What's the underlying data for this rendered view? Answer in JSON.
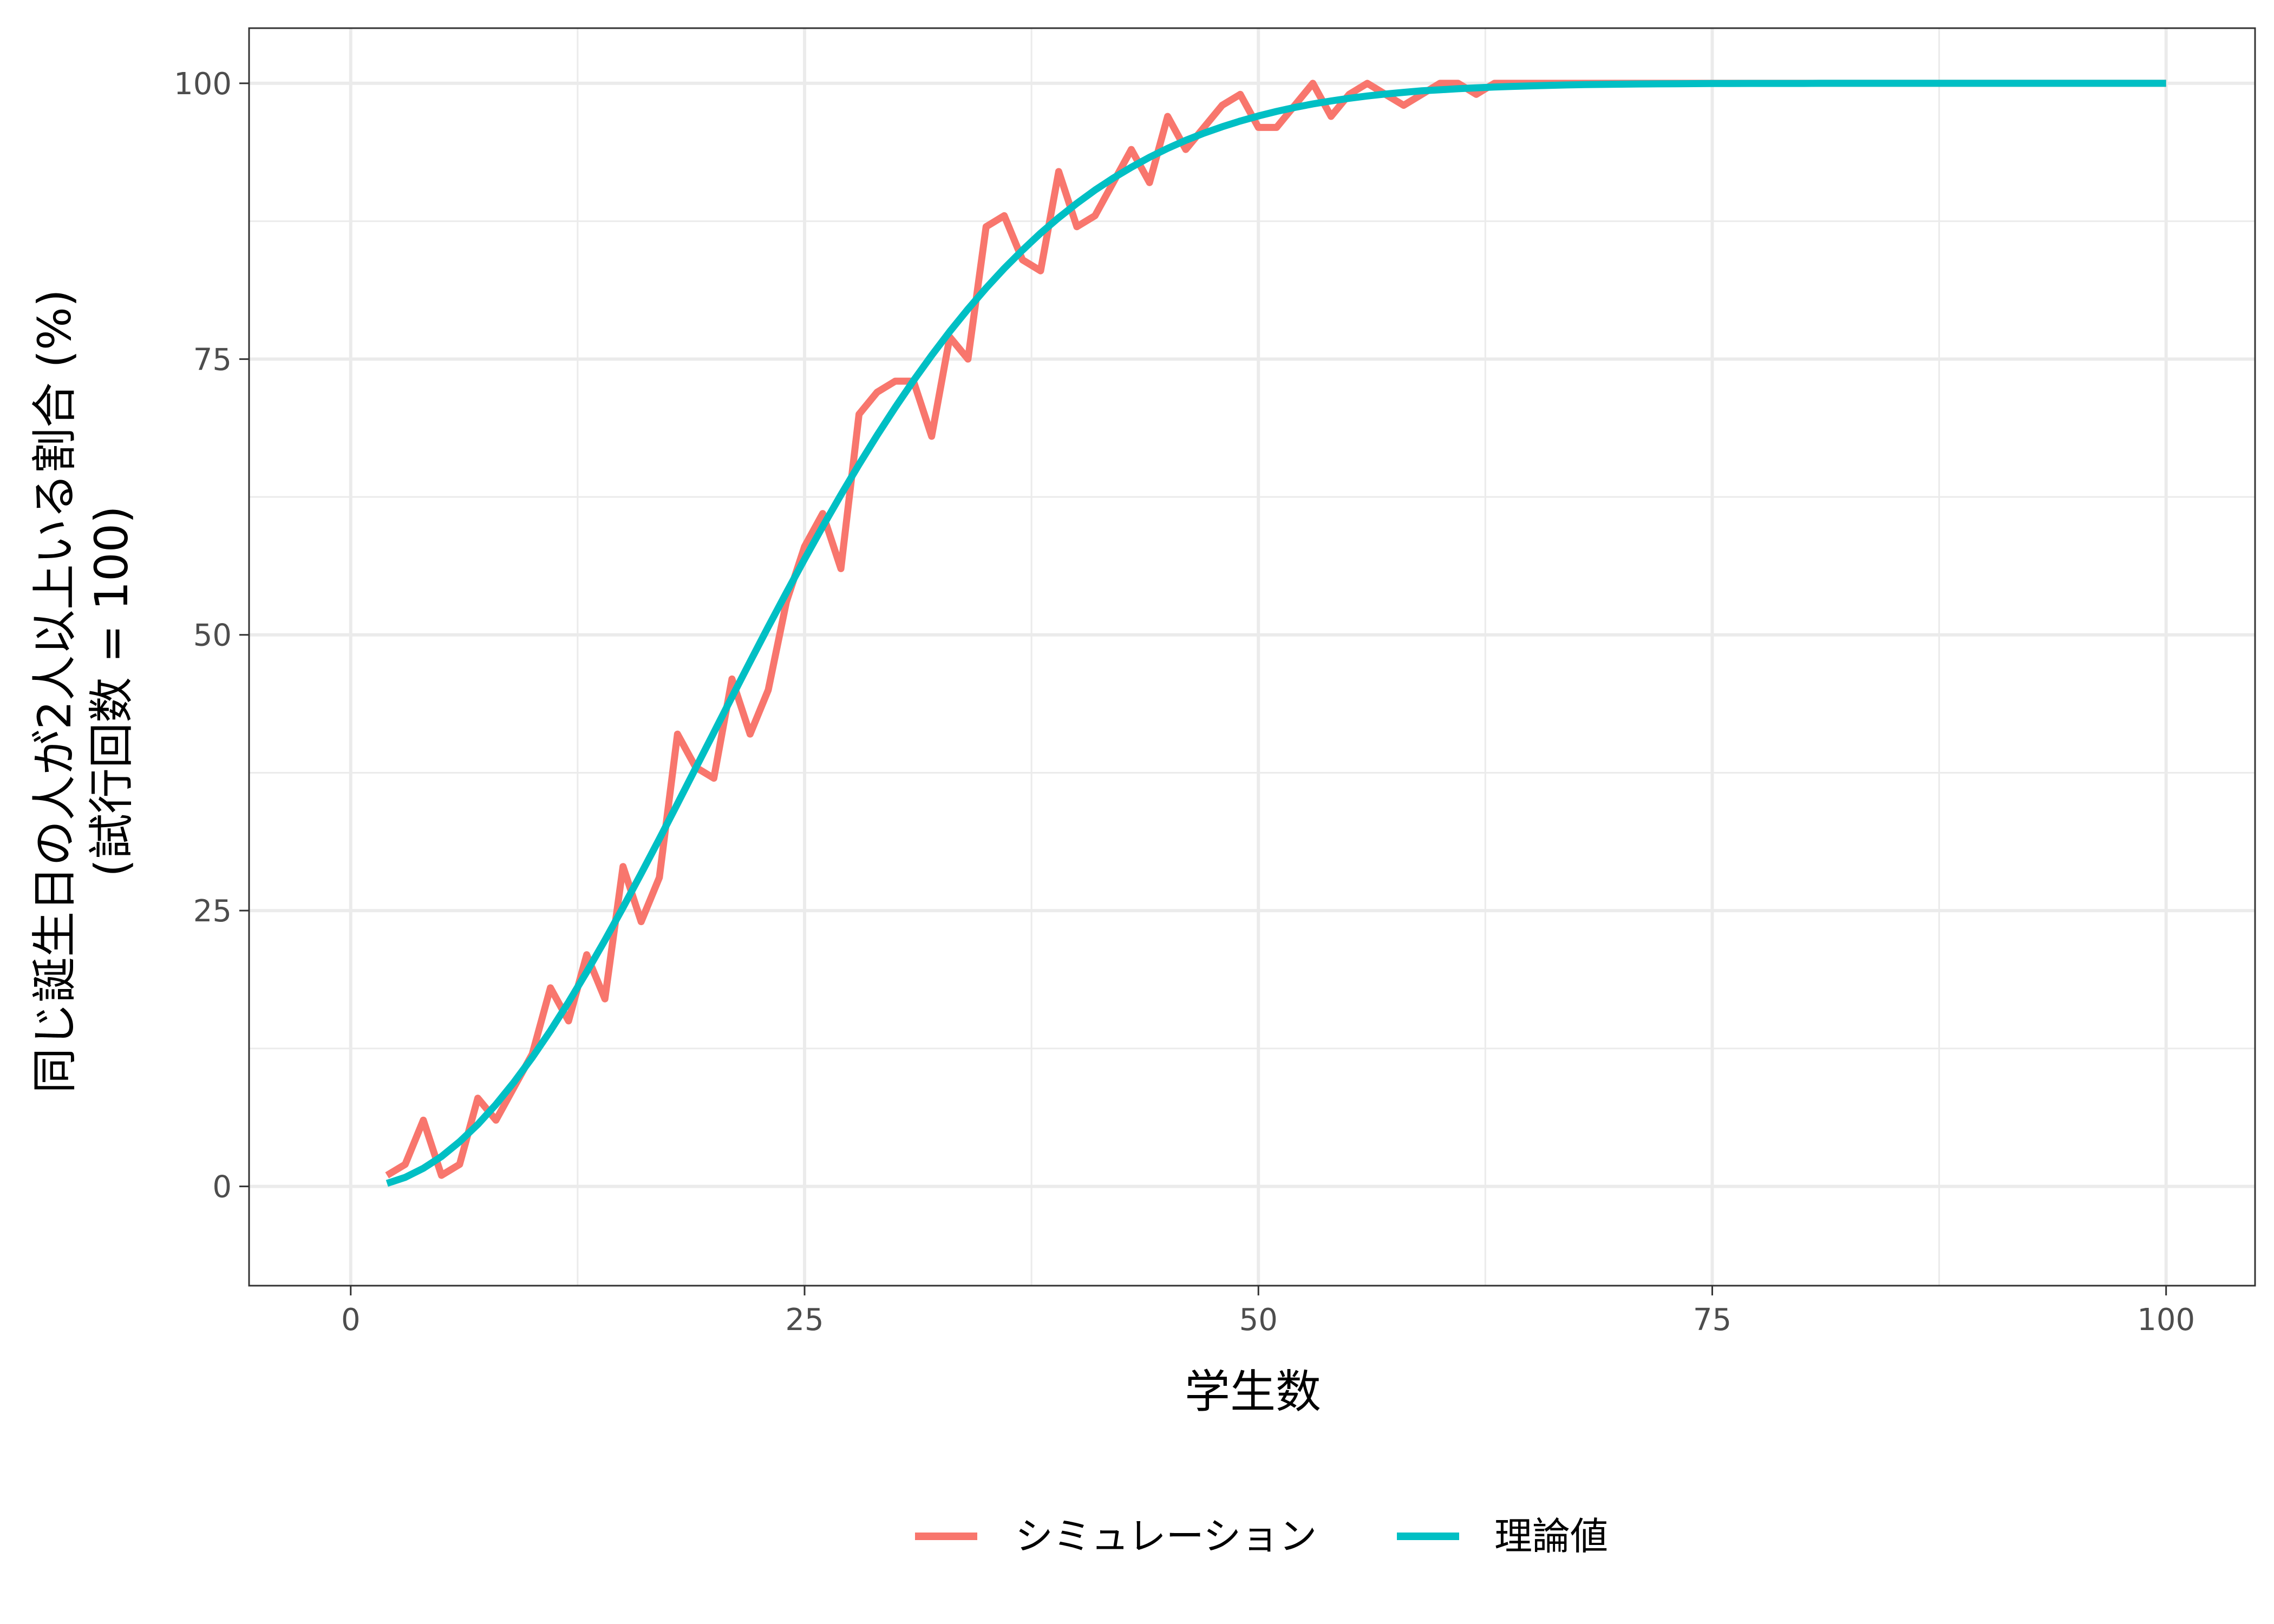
{
  "chart_data": {
    "type": "line",
    "xlabel": "学生数",
    "ylabel_lines": [
      "同じ誕生日の人が2人以上いる割合 (%)",
      "(試行回数 = 100)"
    ],
    "xlim": [
      -5.6,
      104.9
    ],
    "ylim": [
      -9,
      105
    ],
    "xticks": [
      0,
      25,
      50,
      75,
      100
    ],
    "yticks": [
      0,
      25,
      50,
      75,
      100
    ],
    "grid": true,
    "legend_position": "bottom",
    "series": [
      {
        "name": "シミュレーション",
        "color": "#f8766d",
        "x": [
          2,
          3,
          4,
          5,
          6,
          7,
          8,
          9,
          10,
          11,
          12,
          13,
          14,
          15,
          16,
          17,
          18,
          19,
          20,
          21,
          22,
          23,
          24,
          25,
          26,
          27,
          28,
          29,
          30,
          31,
          32,
          33,
          34,
          35,
          36,
          37,
          38,
          39,
          40,
          41,
          42,
          43,
          44,
          45,
          46,
          47,
          48,
          49,
          50,
          51,
          52,
          53,
          54,
          55,
          56,
          57,
          58,
          59,
          60,
          61,
          62,
          63,
          64,
          65,
          66,
          67,
          68,
          69,
          70,
          71,
          72,
          73,
          74,
          75,
          76,
          77,
          78,
          79,
          80,
          81,
          82,
          83,
          84,
          85,
          86,
          87,
          88,
          89,
          90,
          91,
          92,
          93,
          94,
          95,
          96,
          97,
          98,
          99,
          100
        ],
        "y": [
          1,
          2,
          6,
          1,
          2,
          8,
          6,
          9,
          12,
          18,
          15,
          21,
          17,
          29,
          24,
          28,
          41,
          38,
          37,
          46,
          41,
          45,
          53,
          58,
          61,
          56,
          70,
          72,
          73,
          73,
          68,
          77,
          75,
          87,
          88,
          84,
          83,
          92,
          87,
          88,
          91,
          94,
          91,
          97,
          94,
          96,
          98,
          99,
          96,
          96,
          98,
          100,
          97,
          99,
          100,
          99,
          98,
          99,
          100,
          100,
          99,
          100,
          100,
          100,
          100,
          100,
          100,
          100,
          100,
          100,
          100,
          100,
          100,
          100,
          100,
          100,
          100,
          100,
          100,
          100,
          100,
          100,
          100,
          100,
          100,
          100,
          100,
          100,
          100,
          100,
          100,
          100,
          100,
          100,
          100,
          100,
          100,
          100,
          100
        ]
      },
      {
        "name": "理論値",
        "color": "#00bfc4",
        "x": [
          2,
          3,
          4,
          5,
          6,
          7,
          8,
          9,
          10,
          11,
          12,
          13,
          14,
          15,
          16,
          17,
          18,
          19,
          20,
          21,
          22,
          23,
          24,
          25,
          26,
          27,
          28,
          29,
          30,
          31,
          32,
          33,
          34,
          35,
          36,
          37,
          38,
          39,
          40,
          41,
          42,
          43,
          44,
          45,
          46,
          47,
          48,
          49,
          50,
          51,
          52,
          53,
          54,
          55,
          56,
          57,
          58,
          59,
          60,
          61,
          62,
          63,
          64,
          65,
          66,
          67,
          68,
          69,
          70,
          71,
          72,
          73,
          74,
          75,
          76,
          77,
          78,
          79,
          80,
          81,
          82,
          83,
          84,
          85,
          86,
          87,
          88,
          89,
          90,
          91,
          92,
          93,
          94,
          95,
          96,
          97,
          98,
          99,
          100
        ],
        "y": [
          0.27,
          0.82,
          1.64,
          2.71,
          4.05,
          5.62,
          7.43,
          9.46,
          11.69,
          14.11,
          16.7,
          19.44,
          22.31,
          25.29,
          28.36,
          31.5,
          34.69,
          37.91,
          41.14,
          44.37,
          47.57,
          50.73,
          53.83,
          56.87,
          59.82,
          62.69,
          65.45,
          68.1,
          70.63,
          73.05,
          75.33,
          77.5,
          79.53,
          81.44,
          83.22,
          84.87,
          86.41,
          87.82,
          89.12,
          90.32,
          91.4,
          92.39,
          93.29,
          94.1,
          94.83,
          95.48,
          96.06,
          96.58,
          97.04,
          97.45,
          97.81,
          98.13,
          98.4,
          98.64,
          98.85,
          99.03,
          99.18,
          99.32,
          99.41,
          99.51,
          99.59,
          99.66,
          99.72,
          99.77,
          99.81,
          99.85,
          99.88,
          99.9,
          99.92,
          99.94,
          99.95,
          99.96,
          99.97,
          99.98,
          99.98,
          99.99,
          99.99,
          99.99,
          99.99,
          100,
          100,
          100,
          100,
          100,
          100,
          100,
          100,
          100,
          100,
          100,
          100,
          100,
          100,
          100,
          100,
          100,
          100,
          100,
          100
        ]
      }
    ]
  }
}
